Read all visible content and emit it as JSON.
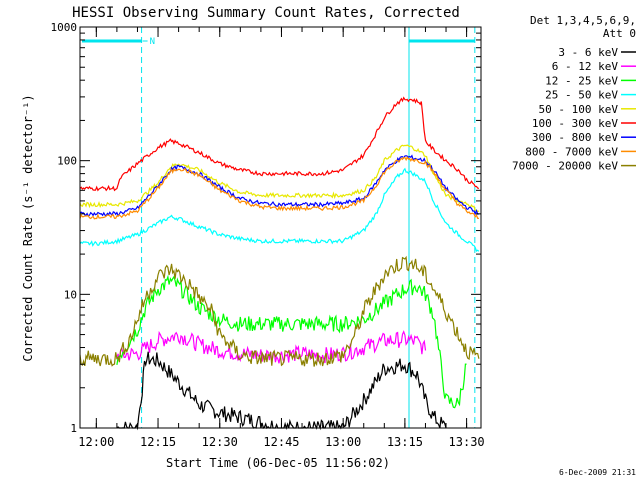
{
  "chart_data": {
    "type": "line",
    "title": "HESSI Observing Summary Count Rates, Corrected",
    "xlabel": "Start Time (06-Dec-05 11:56:02)",
    "ylabel": "Corrected Count Rate (s⁻¹ detector⁻¹)",
    "y_scale": "log",
    "ylim": [
      1,
      1000
    ],
    "xlim": [
      "11:56:02",
      "13:33:30"
    ],
    "x_ticks": [
      "12:00",
      "12:15",
      "12:30",
      "12:45",
      "13:00",
      "13:15",
      "13:30"
    ],
    "y_ticks": [
      "1",
      "10",
      "100",
      "1000"
    ],
    "legend_header": [
      "Det 1,3,4,5,6,9,",
      "Att 0"
    ],
    "footer_date": "6-Dec-2009 21:31",
    "flag_label": "N",
    "legend_position": "right",
    "grid": false,
    "markers": [
      {
        "style": "dashed",
        "color": "#00e5ee",
        "time": "12:11"
      },
      {
        "style": "solid",
        "color": "#00e5ee",
        "time": "13:16"
      },
      {
        "style": "dashed",
        "color": "#00e5ee",
        "time": "13:32"
      }
    ],
    "series": [
      {
        "name": "3 - 6 keV",
        "color": "#000000",
        "x": [
          "12:05",
          "12:10",
          "12:12",
          "12:15",
          "12:20",
          "12:25",
          "12:30",
          "12:35",
          "12:40",
          "12:45",
          "12:50",
          "12:55",
          "13:00",
          "13:05",
          "13:10",
          "13:15",
          "13:18",
          "13:20",
          "13:22",
          "13:25"
        ],
        "values": [
          1,
          1,
          3.3,
          3.2,
          2.2,
          1.5,
          1.3,
          1.2,
          1.1,
          1,
          1,
          1,
          1,
          1.6,
          2.8,
          3.0,
          2.5,
          1.6,
          1.2,
          1
        ]
      },
      {
        "name": "6 - 12 keV",
        "color": "#ff00ff",
        "x": [
          "12:05",
          "12:10",
          "12:15",
          "12:20",
          "12:25",
          "12:30",
          "12:35",
          "12:40",
          "12:45",
          "12:50",
          "12:55",
          "13:00",
          "13:05",
          "13:10",
          "13:15",
          "13:18",
          "13:20"
        ],
        "values": [
          3.5,
          3.6,
          4.5,
          5.0,
          4.2,
          3.8,
          3.6,
          3.5,
          3.5,
          3.6,
          3.5,
          3.6,
          4.0,
          4.5,
          4.6,
          4.4,
          3.8
        ]
      },
      {
        "name": "12 - 25 keV",
        "color": "#00ff00",
        "x": [
          "12:05",
          "12:10",
          "12:12",
          "12:15",
          "12:18",
          "12:20",
          "12:25",
          "12:30",
          "12:35",
          "12:40",
          "12:45",
          "12:50",
          "12:55",
          "13:00",
          "13:05",
          "13:10",
          "13:15",
          "13:18",
          "13:20",
          "13:22",
          "13:25",
          "13:28",
          "13:30"
        ],
        "values": [
          3.3,
          5.5,
          8.0,
          11.0,
          12.5,
          11.5,
          8.0,
          6.5,
          6.0,
          6.0,
          6.0,
          6.0,
          6.0,
          6.0,
          6.5,
          8.5,
          11.0,
          11.5,
          10.0,
          7.0,
          1.6,
          1.5,
          3.0
        ]
      },
      {
        "name": "25 - 50 keV",
        "color": "#00ffff",
        "x": [
          "11:56:02",
          "12:00",
          "12:05",
          "12:10",
          "12:15",
          "12:18",
          "12:20",
          "12:25",
          "12:30",
          "12:35",
          "12:40",
          "12:45",
          "12:50",
          "12:55",
          "13:00",
          "13:05",
          "13:08",
          "13:10",
          "13:13",
          "13:15",
          "13:17",
          "13:20",
          "13:22",
          "13:25",
          "13:28",
          "13:30",
          "13:33"
        ],
        "values": [
          24,
          24,
          25,
          28,
          34,
          38,
          37,
          32,
          28,
          26,
          25,
          25,
          25,
          25,
          25,
          30,
          40,
          55,
          75,
          85,
          80,
          70,
          50,
          34,
          28,
          25,
          21
        ]
      },
      {
        "name": "50 - 100 keV",
        "color": "#e8e800",
        "x": [
          "11:56:02",
          "12:05",
          "12:10",
          "12:15",
          "12:18",
          "12:20",
          "12:25",
          "12:30",
          "12:35",
          "12:40",
          "12:45",
          "12:50",
          "12:55",
          "13:00",
          "13:05",
          "13:08",
          "13:10",
          "13:13",
          "13:15",
          "13:17",
          "13:20",
          "13:22",
          "13:25",
          "13:28",
          "13:30",
          "13:33"
        ],
        "values": [
          47,
          47,
          50,
          68,
          90,
          95,
          85,
          68,
          58,
          55,
          55,
          55,
          55,
          55,
          60,
          75,
          100,
          120,
          130,
          125,
          110,
          80,
          55,
          50,
          48,
          42
        ]
      },
      {
        "name": "100 - 300 keV",
        "color": "#ff0000",
        "x": [
          "11:56:02",
          "12:05",
          "12:06",
          "12:10",
          "12:15",
          "12:18",
          "12:20",
          "12:25",
          "12:30",
          "12:35",
          "12:40",
          "12:45",
          "12:50",
          "12:55",
          "13:00",
          "13:05",
          "13:08",
          "13:10",
          "13:13",
          "13:15",
          "13:17",
          "13:19",
          "13:20",
          "13:22",
          "13:25",
          "13:28",
          "13:30",
          "13:33"
        ],
        "values": [
          62,
          62,
          75,
          95,
          125,
          140,
          135,
          115,
          95,
          85,
          80,
          80,
          80,
          80,
          85,
          110,
          160,
          210,
          270,
          290,
          285,
          270,
          140,
          120,
          100,
          85,
          72,
          62
        ]
      },
      {
        "name": "300 - 800 keV",
        "color": "#0000ff",
        "x": [
          "11:56:02",
          "12:05",
          "12:10",
          "12:15",
          "12:18",
          "12:20",
          "12:25",
          "12:30",
          "12:35",
          "12:40",
          "12:45",
          "12:50",
          "12:55",
          "13:00",
          "13:05",
          "13:08",
          "13:10",
          "13:13",
          "13:15",
          "13:17",
          "13:20",
          "13:22",
          "13:25",
          "13:28",
          "13:30",
          "13:33"
        ],
        "values": [
          40,
          40,
          44,
          65,
          85,
          90,
          80,
          63,
          52,
          48,
          47,
          47,
          47,
          48,
          52,
          68,
          85,
          100,
          108,
          105,
          100,
          85,
          62,
          50,
          45,
          40
        ]
      },
      {
        "name": "800 - 7000 keV",
        "color": "#ff8c00",
        "x": [
          "11:56:02",
          "12:05",
          "12:10",
          "12:15",
          "12:18",
          "12:20",
          "12:25",
          "12:30",
          "12:35",
          "12:40",
          "12:45",
          "12:50",
          "12:55",
          "13:00",
          "13:05",
          "13:08",
          "13:10",
          "13:13",
          "13:15",
          "13:17",
          "13:20",
          "13:22",
          "13:25",
          "13:28",
          "13:30",
          "13:33"
        ],
        "values": [
          38,
          38,
          42,
          62,
          82,
          88,
          78,
          60,
          50,
          45,
          44,
          44,
          44,
          45,
          50,
          65,
          82,
          98,
          105,
          102,
          97,
          82,
          60,
          47,
          42,
          37
        ]
      },
      {
        "name": "7000 - 20000 keV",
        "color": "#8b8000",
        "x": [
          "11:56:02",
          "12:05",
          "12:08",
          "12:10",
          "12:12",
          "12:15",
          "12:18",
          "12:20",
          "12:23",
          "12:25",
          "12:28",
          "12:30",
          "12:35",
          "12:40",
          "12:45",
          "12:50",
          "12:55",
          "13:00",
          "13:03",
          "13:05",
          "13:08",
          "13:10",
          "13:13",
          "13:15",
          "13:17",
          "13:20",
          "13:22",
          "13:25",
          "13:28",
          "13:30",
          "13:33"
        ],
        "values": [
          3.3,
          3.3,
          4.5,
          6.5,
          9.5,
          13.5,
          15.5,
          14,
          11.5,
          9.5,
          7.5,
          5,
          3.5,
          3.3,
          3.3,
          3.3,
          3.3,
          3.5,
          5,
          7.5,
          11,
          14,
          16.5,
          17.5,
          17,
          14,
          11,
          7.5,
          5,
          3.8,
          3.3
        ]
      }
    ]
  }
}
